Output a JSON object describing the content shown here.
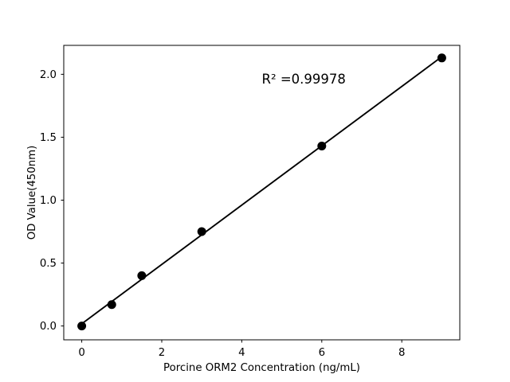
{
  "chart_data": {
    "type": "scatter",
    "title": "",
    "xlabel": "Porcine ORM2 Concentration (ng/mL)",
    "ylabel": "OD Value(450nm)",
    "x": [
      0,
      0.75,
      1.5,
      3,
      6,
      9
    ],
    "y": [
      0.0,
      0.17,
      0.4,
      0.75,
      1.43,
      2.13
    ],
    "fit_line": {
      "type": "linear",
      "show": true
    },
    "annotation": {
      "text": "R² =0.99978",
      "fx": 0.5,
      "fy": 0.87
    },
    "xticks": {
      "values": [
        0,
        2,
        4,
        6,
        8
      ],
      "labels": [
        "0",
        "2",
        "4",
        "6",
        "8"
      ]
    },
    "yticks": {
      "values": [
        0.0,
        0.5,
        1.0,
        1.5,
        2.0
      ],
      "labels": [
        "0.0",
        "0.5",
        "1.0",
        "1.5",
        "2.0"
      ]
    },
    "xlim": [
      -0.45,
      9.45
    ],
    "ylim": [
      -0.11,
      2.23
    ],
    "grid": false,
    "legend": null,
    "colors": {
      "marker": "#000000",
      "line": "#000000",
      "axis": "#000000",
      "text": "#000000",
      "background": "#ffffff"
    }
  }
}
